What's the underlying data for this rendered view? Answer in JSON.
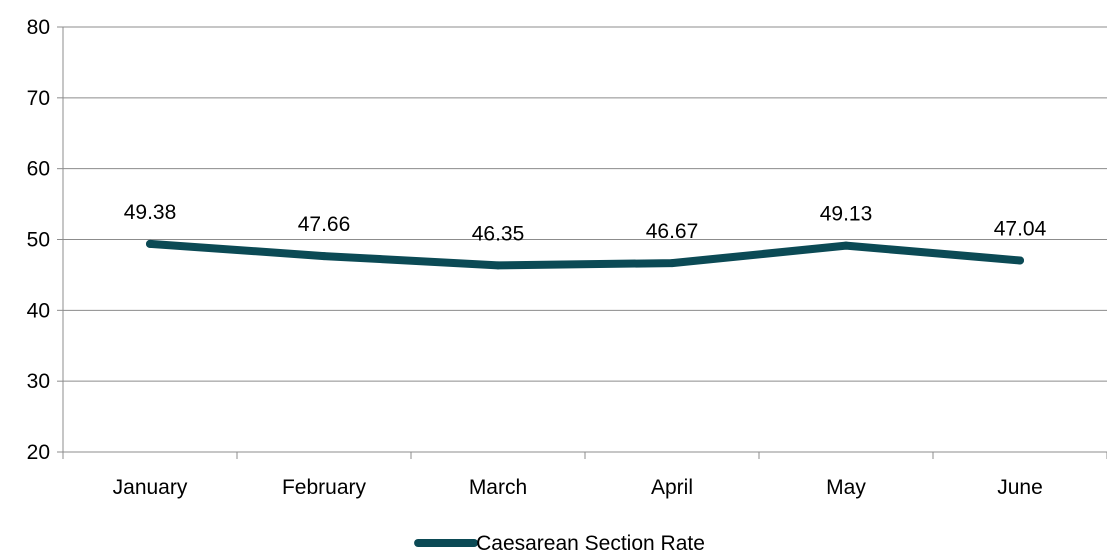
{
  "chart_data": {
    "type": "line",
    "categories": [
      "January",
      "February",
      "March",
      "April",
      "May",
      "June"
    ],
    "series": [
      {
        "name": "Caesarean Section Rate",
        "values": [
          49.38,
          47.66,
          46.35,
          46.67,
          49.13,
          47.04
        ],
        "labels": [
          "49.38",
          "47.66",
          "46.35",
          "46.67",
          "49.13",
          "47.04"
        ],
        "color": "#0b4a55"
      }
    ],
    "ylim": [
      20,
      80
    ],
    "yticks": [
      "20",
      "30",
      "40",
      "50",
      "60",
      "70",
      "80"
    ],
    "grid": true,
    "legend_position": "bottom"
  }
}
